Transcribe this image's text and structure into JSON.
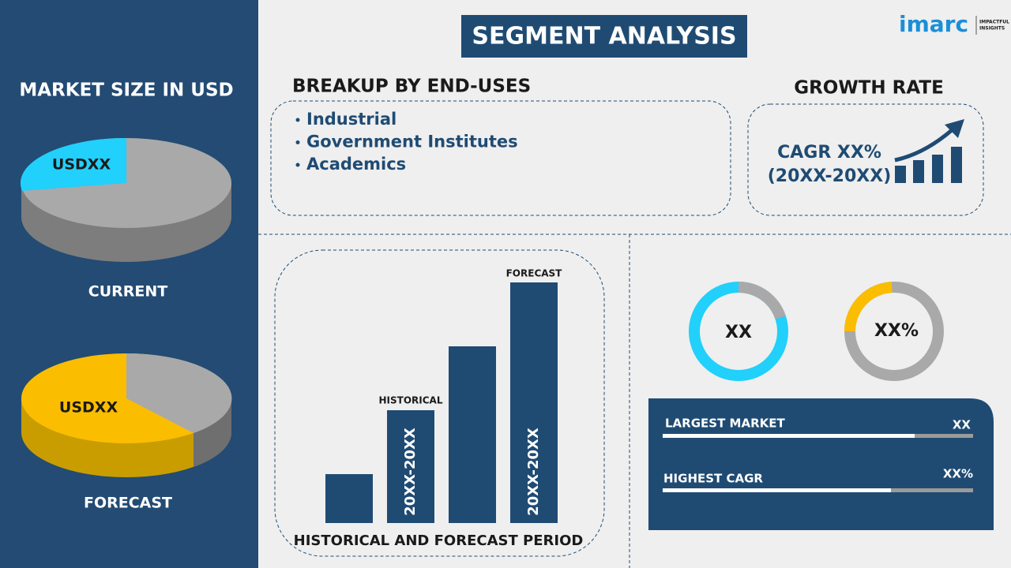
{
  "header": {
    "title": "SEGMENT ANALYSIS",
    "logo": "imarc",
    "logo_tagline": [
      "IMPACTFUL",
      "INSIGHTS"
    ]
  },
  "market_size": {
    "title": "MARKET SIZE IN USD",
    "current": {
      "value_label": "USDXX",
      "label": "CURRENT"
    },
    "forecast": {
      "value_label": "USDXX",
      "label": "FORECAST"
    }
  },
  "breakup": {
    "title": "BREAKUP BY END-USES",
    "items": [
      "Industrial",
      "Government Institutes",
      "Academics"
    ]
  },
  "growth_rate": {
    "title": "GROWTH RATE",
    "cagr": "CAGR XX%",
    "period": "(20XX-20XX)"
  },
  "period_chart": {
    "title": "HISTORICAL AND FORECAST PERIOD",
    "historical": {
      "label": "HISTORICAL",
      "period": "20XX-20XX"
    },
    "forecast": {
      "label": "FORECAST",
      "period": "20XX-20XX"
    }
  },
  "donuts": [
    {
      "label": "XX"
    },
    {
      "label": "XX%"
    }
  ],
  "stats": [
    {
      "label": "LARGEST MARKET",
      "value": "XX"
    },
    {
      "label": "HIGHEST CAGR",
      "value": "XX%"
    }
  ]
}
